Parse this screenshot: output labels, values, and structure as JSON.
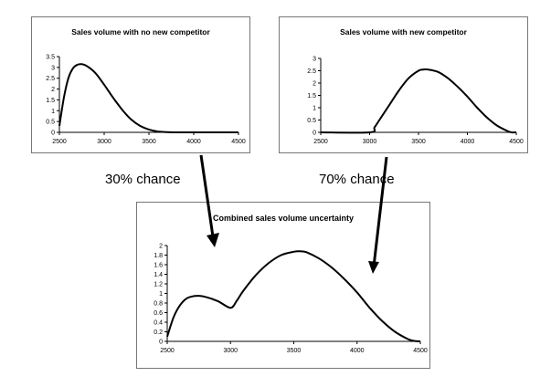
{
  "chart_data": [
    {
      "type": "line",
      "title": "Sales volume with no new competitor",
      "xlim": [
        2500,
        4500
      ],
      "ylim": [
        0,
        3.5
      ],
      "xticks": [
        2500,
        3000,
        3500,
        4000,
        4500
      ],
      "yticks": [
        0,
        0.5,
        1,
        1.5,
        2,
        2.5,
        3,
        3.5
      ],
      "series": [
        {
          "x": [
            2500,
            2550,
            2600,
            2650,
            2700,
            2750,
            2800,
            2900,
            3000,
            3100,
            3200,
            3300,
            3400,
            3500,
            3600,
            3700,
            3800,
            3900,
            4000,
            4500
          ],
          "y": [
            0.3,
            1.6,
            2.5,
            2.95,
            3.12,
            3.15,
            3.08,
            2.75,
            2.2,
            1.6,
            1.05,
            0.6,
            0.3,
            0.13,
            0.04,
            0.01,
            0,
            0,
            0,
            0
          ]
        }
      ]
    },
    {
      "type": "line",
      "title": "Sales volume with new competitor",
      "xlim": [
        2500,
        4500
      ],
      "ylim": [
        0,
        3
      ],
      "xticks": [
        2500,
        3000,
        3500,
        4000,
        4500
      ],
      "yticks": [
        0,
        0.5,
        1,
        1.5,
        2,
        2.5,
        3
      ],
      "series": [
        {
          "x": [
            2500,
            3000,
            3050,
            3100,
            3200,
            3300,
            3400,
            3500,
            3550,
            3600,
            3700,
            3800,
            3900,
            4000,
            4100,
            4200,
            4300,
            4400,
            4450,
            4500
          ],
          "y": [
            0,
            0,
            0.2,
            0.5,
            1.1,
            1.7,
            2.2,
            2.5,
            2.55,
            2.55,
            2.45,
            2.2,
            1.85,
            1.45,
            1.0,
            0.6,
            0.28,
            0.07,
            0,
            0
          ]
        }
      ]
    },
    {
      "type": "line",
      "title": "Combined sales volume uncertainty",
      "xlim": [
        2500,
        4500
      ],
      "ylim": [
        0,
        2
      ],
      "xticks": [
        2500,
        3000,
        3500,
        4000,
        4500
      ],
      "yticks": [
        0,
        0.2,
        0.4,
        0.6,
        0.8,
        1,
        1.2,
        1.4,
        1.6,
        1.8,
        2
      ],
      "series": [
        {
          "x": [
            2500,
            2550,
            2600,
            2650,
            2700,
            2750,
            2800,
            2900,
            3000,
            3050,
            3100,
            3200,
            3300,
            3400,
            3500,
            3550,
            3600,
            3700,
            3800,
            3900,
            4000,
            4100,
            4200,
            4300,
            4400,
            4450,
            4500
          ],
          "y": [
            0.1,
            0.5,
            0.75,
            0.89,
            0.94,
            0.95,
            0.93,
            0.84,
            0.7,
            0.85,
            1.05,
            1.38,
            1.63,
            1.8,
            1.87,
            1.88,
            1.86,
            1.73,
            1.54,
            1.3,
            1.02,
            0.7,
            0.42,
            0.2,
            0.05,
            0.01,
            0
          ]
        }
      ]
    }
  ],
  "labels": {
    "left_chance": "30% chance",
    "right_chance": "70% chance"
  }
}
